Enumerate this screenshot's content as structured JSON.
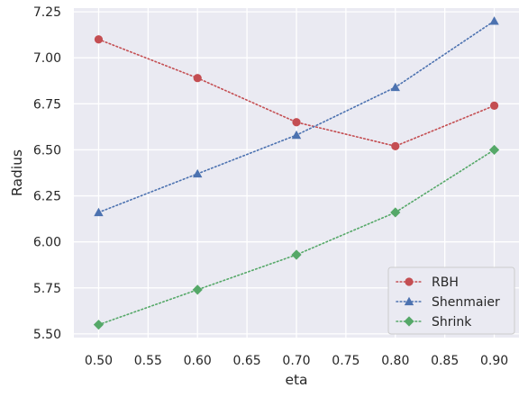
{
  "chart_data": {
    "type": "line",
    "xlabel": "eta",
    "ylabel": "Radius",
    "xlim": [
      0.475,
      0.925
    ],
    "ylim": [
      5.48,
      7.27
    ],
    "xticks": [
      0.5,
      0.55,
      0.6,
      0.65,
      0.7,
      0.75,
      0.8,
      0.85,
      0.9
    ],
    "xtick_labels": [
      "0.50",
      "0.55",
      "0.60",
      "0.65",
      "0.70",
      "0.75",
      "0.80",
      "0.85",
      "0.90"
    ],
    "yticks": [
      5.5,
      5.75,
      6.0,
      6.25,
      6.5,
      6.75,
      7.0,
      7.25
    ],
    "ytick_labels": [
      "5.50",
      "5.75",
      "6.00",
      "6.25",
      "6.50",
      "6.75",
      "7.00",
      "7.25"
    ],
    "x": [
      0.5,
      0.6,
      0.7,
      0.8,
      0.9
    ],
    "series": [
      {
        "name": "RBH",
        "color": "#c44e52",
        "marker": "circle",
        "values": [
          7.1,
          6.89,
          6.65,
          6.52,
          6.74
        ]
      },
      {
        "name": "Shenmaier",
        "color": "#4c72b0",
        "marker": "triangle",
        "values": [
          6.16,
          6.37,
          6.58,
          6.84,
          7.2
        ]
      },
      {
        "name": "Shrink",
        "color": "#55a868",
        "marker": "diamond",
        "values": [
          5.55,
          5.74,
          5.93,
          6.16,
          6.5
        ]
      }
    ],
    "grid": true,
    "legend_position": "bottom-right",
    "line_style": "dotted",
    "background": "#eaeaf2"
  }
}
